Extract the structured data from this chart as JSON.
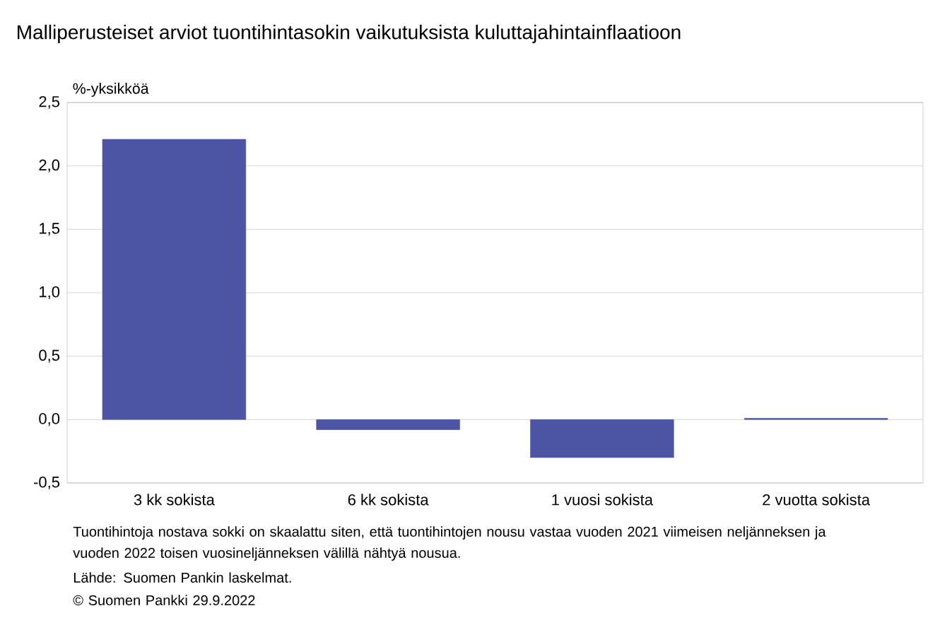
{
  "chart_data": {
    "type": "bar",
    "title": "Malliperusteiset arviot tuontihintasokin vaikutuksista kuluttajahintainflaatioon",
    "ylabel": "%-yksikköä",
    "categories": [
      "3 kk sokista",
      "6 kk sokista",
      "1 vuosi sokista",
      "2 vuotta sokista"
    ],
    "values": [
      2.21,
      -0.08,
      -0.3,
      0.01
    ],
    "color": "#4b55a3",
    "ylim": [
      -0.5,
      2.5
    ],
    "yticks": [
      {
        "value": -0.5,
        "label": "-0,5"
      },
      {
        "value": 0,
        "label": "0,0"
      },
      {
        "value": 0.5,
        "label": "0,5"
      },
      {
        "value": 1,
        "label": "1,0"
      },
      {
        "value": 1.5,
        "label": "1,5"
      },
      {
        "value": 2,
        "label": "2,0"
      },
      {
        "value": 2.5,
        "label": "2,5"
      }
    ],
    "grid": "y",
    "annotations": [
      "Tuontihintoja nostava sokki on skaalattu siten, että tuontihintojen nousu vastaa vuoden 2021 viimeisen neljänneksen ja vuoden 2022 toisen vuosineljänneksen välillä nähtyä nousua.",
      "Lähde: Suomen Pankin laskelmat.",
      "© Suomen Pankki 29.9.2022"
    ]
  }
}
